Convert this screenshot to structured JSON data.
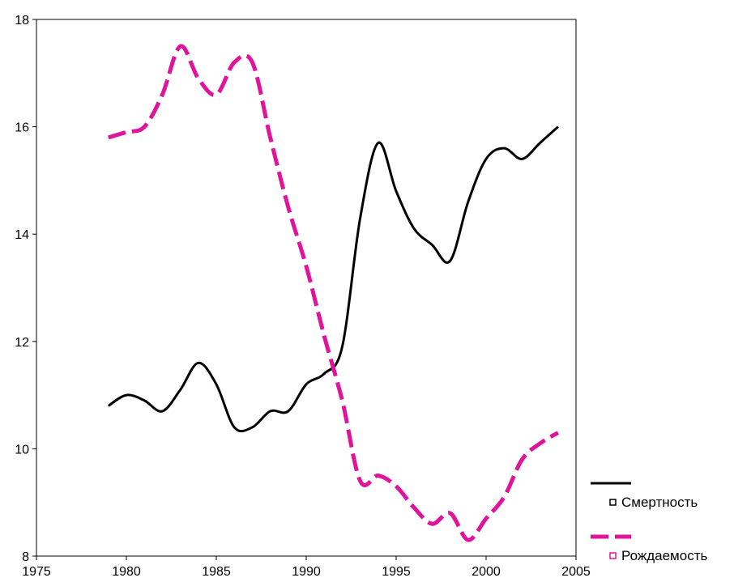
{
  "chart_data": {
    "type": "line",
    "title": "",
    "xlabel": "",
    "ylabel": "",
    "xlim": [
      1975,
      2005
    ],
    "ylim": [
      8,
      18
    ],
    "x_ticks": [
      "1975",
      "1980",
      "1985",
      "1990",
      "1995",
      "2000",
      "2005"
    ],
    "y_ticks": [
      "8",
      "10",
      "12",
      "14",
      "16",
      "18"
    ],
    "grid": false,
    "legend": "bottom-right",
    "series": [
      {
        "name": "Смертность",
        "color": "#000000",
        "style": "solid",
        "x": [
          1979,
          1980,
          1981,
          1982,
          1983,
          1984,
          1985,
          1986,
          1987,
          1988,
          1989,
          1990,
          1991,
          1992,
          1993,
          1994,
          1995,
          1996,
          1997,
          1998,
          1999,
          2000,
          2001,
          2002,
          2003,
          2004
        ],
        "y": [
          10.8,
          11.0,
          10.9,
          10.7,
          11.1,
          11.6,
          11.2,
          10.4,
          10.4,
          10.7,
          10.7,
          11.2,
          11.4,
          11.9,
          14.3,
          15.7,
          14.8,
          14.1,
          13.8,
          13.5,
          14.6,
          15.4,
          15.6,
          15.4,
          15.7,
          16.0
        ]
      },
      {
        "name": "Рождаемость",
        "color": "#e0149b",
        "style": "dashed",
        "x": [
          1979,
          1980,
          1981,
          1982,
          1983,
          1984,
          1985,
          1986,
          1987,
          1988,
          1989,
          1990,
          1991,
          1992,
          1993,
          1994,
          1995,
          1996,
          1997,
          1998,
          1999,
          2000,
          2001,
          2002,
          2003,
          2004
        ],
        "y": [
          15.8,
          15.9,
          16.0,
          16.6,
          17.5,
          16.9,
          16.6,
          17.2,
          17.2,
          15.8,
          14.5,
          13.4,
          12.1,
          10.9,
          9.4,
          9.5,
          9.3,
          8.9,
          8.6,
          8.8,
          8.3,
          8.7,
          9.1,
          9.8,
          10.1,
          10.3
        ]
      }
    ]
  }
}
